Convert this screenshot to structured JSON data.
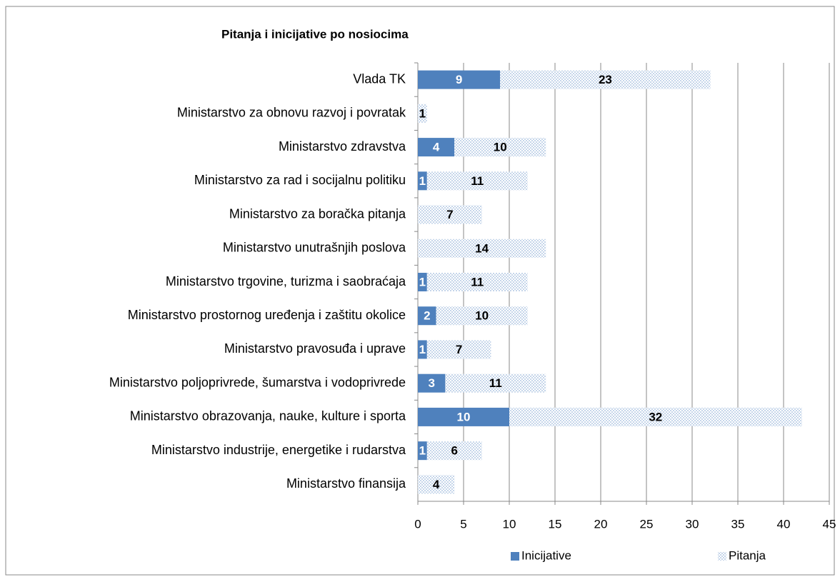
{
  "chart_data": {
    "type": "bar",
    "orientation": "horizontal",
    "stacked": true,
    "title": "Pitanja i inicijative po nosiocima",
    "categories": [
      "Vlada TK",
      "Ministarstvo za obnovu razvoj i povratak",
      "Ministarstvo zdravstva",
      "Ministarstvo za rad i socijalnu politiku",
      "Ministarstvo za boračka pitanja",
      "Ministarstvo unutrašnjih poslova",
      "Ministarstvo trgovine, turizma i saobraćaja",
      "Ministarstvo prostornog uređenja i zaštitu okolice",
      "Ministarstvo pravosuđa i uprave",
      "Ministarstvo poljoprivrede, šumarstva i vodoprivrede",
      "Ministarstvo obrazovanja, nauke, kulture i sporta",
      "Ministarstvo industrije, energetike i rudarstva",
      "Ministarstvo finansija"
    ],
    "series": [
      {
        "name": "Inicijative",
        "color": "#4f81bd",
        "values": [
          9,
          null,
          4,
          1,
          null,
          null,
          1,
          2,
          1,
          3,
          10,
          1,
          null
        ]
      },
      {
        "name": "Pitanja",
        "color": "#c6d6ea",
        "pattern": "dots",
        "values": [
          23,
          1,
          10,
          11,
          7,
          14,
          11,
          10,
          7,
          11,
          32,
          6,
          4
        ]
      }
    ],
    "xlim": [
      0,
      45
    ],
    "xticks": [
      0,
      5,
      10,
      15,
      20,
      25,
      30,
      35,
      40,
      45
    ],
    "grid": true,
    "legend": "bottom"
  }
}
